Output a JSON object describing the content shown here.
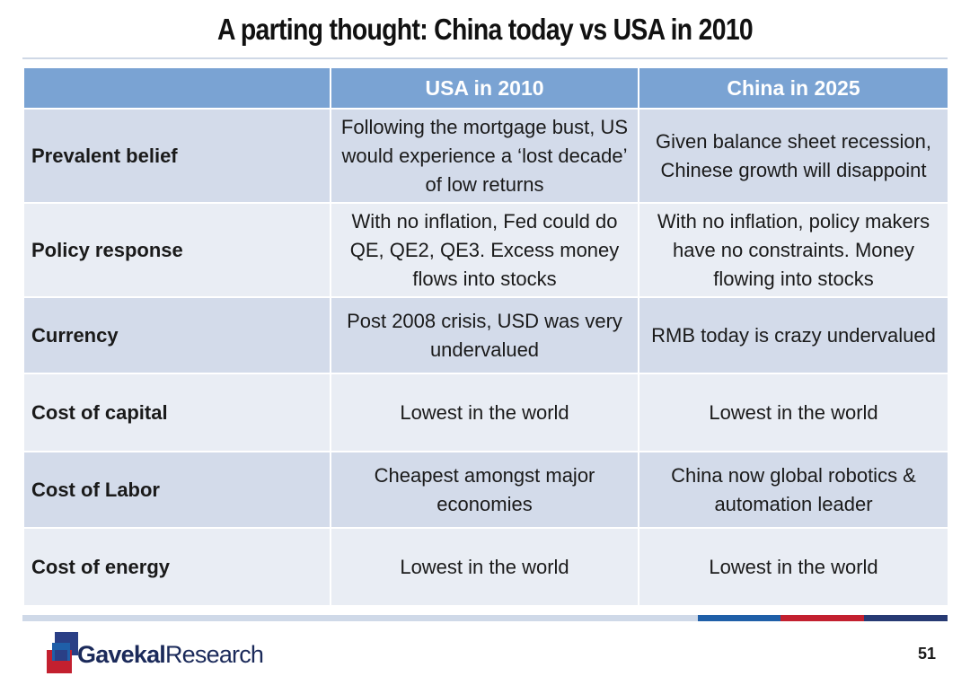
{
  "slide": {
    "title": "A parting thought: China today vs USA in 2010",
    "page_number": "51"
  },
  "table": {
    "headers": [
      "",
      "USA in 2010",
      "China in 2025"
    ],
    "rows": [
      {
        "label": "Prevalent belief",
        "usa": "Following the mortgage bust, US would experience a ‘lost decade’ of low returns",
        "china": "Given balance sheet recession, Chinese growth will disappoint"
      },
      {
        "label": "Policy response",
        "usa": "With no inflation, Fed could do QE, QE2, QE3. Excess money flows into stocks",
        "china": "With no inflation, policy makers have no constraints. Money flowing into stocks"
      },
      {
        "label": "Currency",
        "usa": "Post 2008 crisis, USD was very undervalued",
        "china": "RMB today is crazy undervalued"
      },
      {
        "label": "Cost of capital",
        "usa": "Lowest in the world",
        "china": "Lowest in the world"
      },
      {
        "label": "Cost of Labor",
        "usa": "Cheapest amongst major economies",
        "china": "China now global robotics & automation leader"
      },
      {
        "label": "Cost of energy",
        "usa": "Lowest in the world",
        "china": "Lowest in the world"
      }
    ]
  },
  "footer": {
    "logo": {
      "word1": "Gavekal",
      "word2": "Research"
    },
    "strip_colors": {
      "light": "#cfd9e8",
      "blue": "#1f5fa8",
      "red": "#c3202f",
      "navy": "#273a73"
    }
  },
  "colors": {
    "header_bg": "#7aa3d3",
    "row_dark": "#d3dbea",
    "row_light": "#e9edf4",
    "logo_text": "#1b2a5a"
  }
}
